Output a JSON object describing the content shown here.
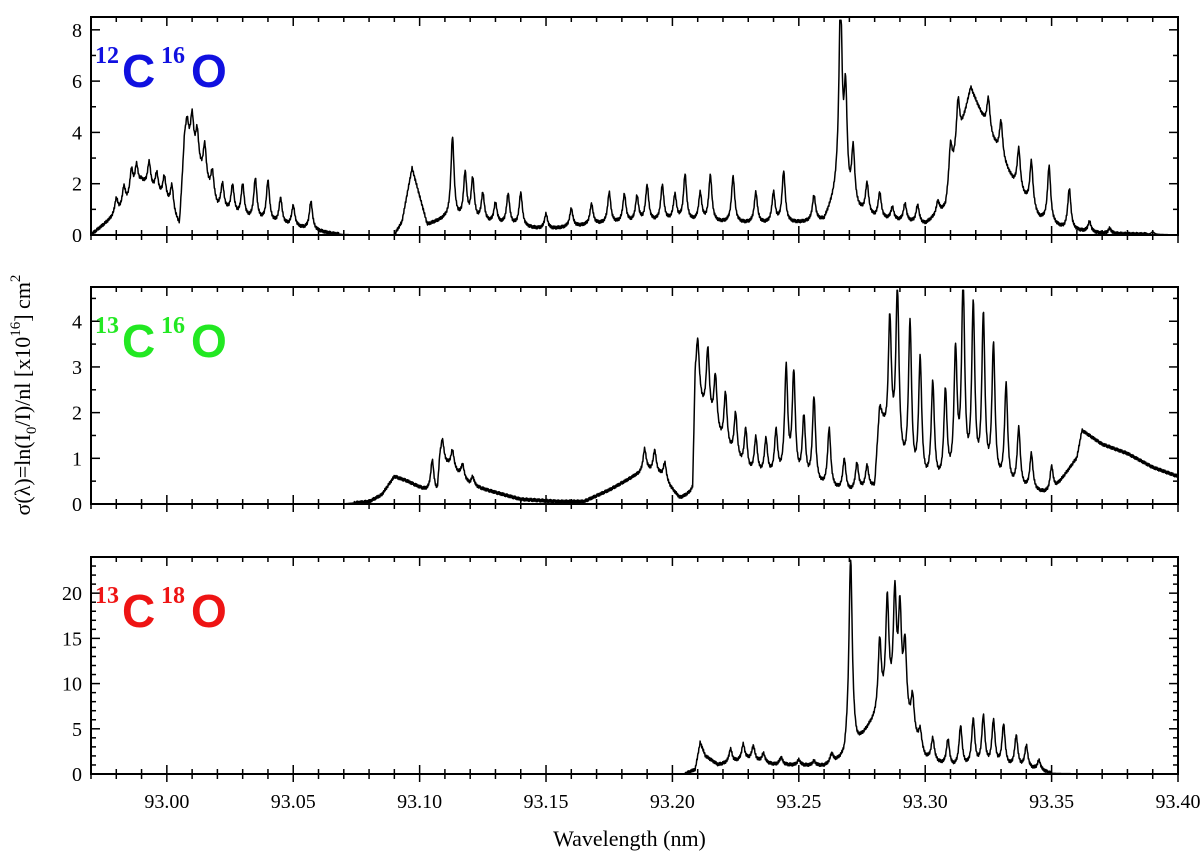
{
  "chart_data": [
    {
      "type": "line",
      "panel": "top",
      "species": {
        "mass_c": "12",
        "element_c": "C",
        "mass_o": "16",
        "element_o": "O",
        "color": "#1010e0"
      },
      "xlim": [
        92.97,
        93.4
      ],
      "ylim": [
        0,
        8.5
      ],
      "yticks": [
        "0",
        "2",
        "4",
        "6",
        "8"
      ],
      "background": [
        [
          92.97,
          0
        ],
        [
          92.983,
          1.0
        ],
        [
          92.99,
          2.0
        ],
        [
          93.0,
          1.2
        ],
        [
          93.005,
          0.3
        ],
        [
          93.007,
          3.5
        ],
        [
          93.01,
          3.0
        ],
        [
          93.015,
          2.0
        ],
        [
          93.02,
          1.0
        ],
        [
          93.03,
          0.6
        ],
        [
          93.05,
          0.3
        ],
        [
          93.065,
          0.05
        ],
        [
          93.07,
          0
        ],
        [
          93.09,
          0
        ],
        [
          93.093,
          0.5
        ],
        [
          93.097,
          2.6
        ],
        [
          93.1,
          1.5
        ],
        [
          93.103,
          0.4
        ],
        [
          93.11,
          0.6
        ],
        [
          93.13,
          0.4
        ],
        [
          93.15,
          0.2
        ],
        [
          93.17,
          0.4
        ],
        [
          93.2,
          0.5
        ],
        [
          93.24,
          0.4
        ],
        [
          93.26,
          0.5
        ],
        [
          93.265,
          1.5
        ],
        [
          93.27,
          1.0
        ],
        [
          93.28,
          0.6
        ],
        [
          93.3,
          0.4
        ],
        [
          93.308,
          1.0
        ],
        [
          93.312,
          3.0
        ],
        [
          93.318,
          5.7
        ],
        [
          93.325,
          4.0
        ],
        [
          93.335,
          2.0
        ],
        [
          93.345,
          0.6
        ],
        [
          93.355,
          0.2
        ],
        [
          93.37,
          0.05
        ],
        [
          93.4,
          0
        ]
      ],
      "peaks": [
        [
          92.98,
          0.6
        ],
        [
          92.983,
          0.8
        ],
        [
          92.986,
          1.0
        ],
        [
          92.988,
          0.9
        ],
        [
          92.993,
          1.0
        ],
        [
          92.996,
          0.8
        ],
        [
          92.999,
          0.9
        ],
        [
          93.002,
          1.0
        ],
        [
          93.008,
          1.0
        ],
        [
          93.01,
          1.5
        ],
        [
          93.012,
          1.3
        ],
        [
          93.015,
          1.4
        ],
        [
          93.018,
          1.0
        ],
        [
          93.022,
          1.0
        ],
        [
          93.026,
          1.1
        ],
        [
          93.03,
          1.3
        ],
        [
          93.035,
          1.6
        ],
        [
          93.04,
          1.6
        ],
        [
          93.045,
          1.0
        ],
        [
          93.05,
          0.8
        ],
        [
          93.057,
          1.1
        ],
        [
          93.113,
          3.2
        ],
        [
          93.118,
          1.8
        ],
        [
          93.121,
          1.6
        ],
        [
          93.125,
          1.1
        ],
        [
          93.13,
          0.8
        ],
        [
          93.135,
          1.2
        ],
        [
          93.14,
          1.3
        ],
        [
          93.15,
          0.6
        ],
        [
          93.16,
          0.7
        ],
        [
          93.168,
          0.8
        ],
        [
          93.175,
          1.2
        ],
        [
          93.181,
          1.1
        ],
        [
          93.186,
          1.0
        ],
        [
          93.19,
          1.4
        ],
        [
          93.196,
          1.4
        ],
        [
          93.201,
          1.0
        ],
        [
          93.205,
          1.8
        ],
        [
          93.211,
          1.1
        ],
        [
          93.215,
          1.8
        ],
        [
          93.224,
          1.8
        ],
        [
          93.233,
          1.2
        ],
        [
          93.24,
          1.2
        ],
        [
          93.244,
          2.0
        ],
        [
          93.256,
          1.0
        ],
        [
          93.2665,
          7.6
        ],
        [
          93.2685,
          4.0
        ],
        [
          93.2715,
          2.2
        ],
        [
          93.277,
          1.2
        ],
        [
          93.282,
          1.0
        ],
        [
          93.287,
          0.5
        ],
        [
          93.292,
          0.7
        ],
        [
          93.297,
          0.7
        ],
        [
          93.305,
          0.5
        ],
        [
          93.31,
          1.5
        ],
        [
          93.313,
          1.8
        ],
        [
          93.325,
          1.3
        ],
        [
          93.33,
          1.4
        ],
        [
          93.337,
          1.6
        ],
        [
          93.342,
          1.8
        ],
        [
          93.349,
          2.2
        ],
        [
          93.357,
          1.6
        ],
        [
          93.365,
          0.4
        ],
        [
          93.373,
          0.2
        ],
        [
          93.39,
          0.1
        ]
      ]
    },
    {
      "type": "line",
      "panel": "middle",
      "species": {
        "mass_c": "13",
        "element_c": "C",
        "mass_o": "16",
        "element_o": "O",
        "color": "#22e822"
      },
      "xlim": [
        92.97,
        93.4
      ],
      "ylim": [
        0,
        4.75
      ],
      "yticks": [
        "0",
        "1",
        "2",
        "3",
        "4"
      ],
      "background": [
        [
          92.97,
          0
        ],
        [
          93.07,
          0
        ],
        [
          93.08,
          0.05
        ],
        [
          93.085,
          0.2
        ],
        [
          93.09,
          0.6
        ],
        [
          93.095,
          0.5
        ],
        [
          93.102,
          0.3
        ],
        [
          93.107,
          0.2
        ],
        [
          93.108,
          0.9
        ],
        [
          93.112,
          0.8
        ],
        [
          93.12,
          0.4
        ],
        [
          93.13,
          0.25
        ],
        [
          93.14,
          0.1
        ],
        [
          93.155,
          0.05
        ],
        [
          93.165,
          0.05
        ],
        [
          93.175,
          0.3
        ],
        [
          93.185,
          0.6
        ],
        [
          93.19,
          0.7
        ],
        [
          93.195,
          0.6
        ],
        [
          93.203,
          0.1
        ],
        [
          93.208,
          0.2
        ],
        [
          93.209,
          2.5
        ],
        [
          93.212,
          2.0
        ],
        [
          93.22,
          1.2
        ],
        [
          93.23,
          0.6
        ],
        [
          93.25,
          0.4
        ],
        [
          93.27,
          0.2
        ],
        [
          93.28,
          0.3
        ],
        [
          93.282,
          2.0
        ],
        [
          93.285,
          1.2
        ],
        [
          93.295,
          0.3
        ],
        [
          93.31,
          0.3
        ],
        [
          93.33,
          0.3
        ],
        [
          93.35,
          0.2
        ],
        [
          93.36,
          1.0
        ],
        [
          93.362,
          1.6
        ],
        [
          93.37,
          1.3
        ],
        [
          93.38,
          1.1
        ],
        [
          93.39,
          0.8
        ],
        [
          93.4,
          0.6
        ]
      ],
      "peaks": [
        [
          93.21,
          1.2
        ],
        [
          93.214,
          1.5
        ],
        [
          93.217,
          1.2
        ],
        [
          93.221,
          1.2
        ],
        [
          93.225,
          1.0
        ],
        [
          93.229,
          0.9
        ],
        [
          93.233,
          0.8
        ],
        [
          93.237,
          0.8
        ],
        [
          93.241,
          1.0
        ],
        [
          93.245,
          2.4
        ],
        [
          93.248,
          2.3
        ],
        [
          93.252,
          1.4
        ],
        [
          93.256,
          1.9
        ],
        [
          93.262,
          1.3
        ],
        [
          93.268,
          0.7
        ],
        [
          93.273,
          0.6
        ],
        [
          93.277,
          0.5
        ],
        [
          93.286,
          2.8
        ],
        [
          93.289,
          3.7
        ],
        [
          93.294,
          3.4
        ],
        [
          93.298,
          2.7
        ],
        [
          93.303,
          2.2
        ],
        [
          93.308,
          2.0
        ],
        [
          93.312,
          2.8
        ],
        [
          93.315,
          4.3
        ],
        [
          93.319,
          3.8
        ],
        [
          93.323,
          3.6
        ],
        [
          93.327,
          3.0
        ],
        [
          93.332,
          2.2
        ],
        [
          93.337,
          1.3
        ],
        [
          93.342,
          0.8
        ],
        [
          93.35,
          0.6
        ],
        [
          93.105,
          0.7
        ],
        [
          93.109,
          0.5
        ],
        [
          93.113,
          0.4
        ],
        [
          93.117,
          0.3
        ],
        [
          93.121,
          0.2
        ],
        [
          93.189,
          0.5
        ],
        [
          93.193,
          0.5
        ],
        [
          93.197,
          0.4
        ]
      ]
    },
    {
      "type": "line",
      "panel": "bottom",
      "species": {
        "mass_c": "13",
        "element_c": "C",
        "mass_o": "18",
        "element_o": "O",
        "color": "#ee1414"
      },
      "xlim": [
        92.97,
        93.4
      ],
      "ylim": [
        0,
        24
      ],
      "yticks": [
        "0",
        "5",
        "10",
        "15",
        "20"
      ],
      "xticks": [
        "93.00",
        "93.05",
        "93.10",
        "93.15",
        "93.20",
        "93.25",
        "93.30",
        "93.35",
        "93.40"
      ],
      "xlabel": "Wavelength (nm)",
      "background": [
        [
          92.97,
          0
        ],
        [
          93.205,
          0
        ],
        [
          93.209,
          0.5
        ],
        [
          93.211,
          3.5
        ],
        [
          93.213,
          2.0
        ],
        [
          93.218,
          1.0
        ],
        [
          93.23,
          1.5
        ],
        [
          93.24,
          1.0
        ],
        [
          93.26,
          0.8
        ],
        [
          93.268,
          1.5
        ],
        [
          93.27,
          4.0
        ],
        [
          93.273,
          3.0
        ],
        [
          93.278,
          5.0
        ],
        [
          93.285,
          7.0
        ],
        [
          93.293,
          5.0
        ],
        [
          93.3,
          1.5
        ],
        [
          93.31,
          0.5
        ],
        [
          93.33,
          0.6
        ],
        [
          93.345,
          0.4
        ],
        [
          93.35,
          0
        ],
        [
          93.4,
          0
        ]
      ],
      "peaks": [
        [
          93.2705,
          20.0
        ],
        [
          93.282,
          8.0
        ],
        [
          93.285,
          11.5
        ],
        [
          93.288,
          12.5
        ],
        [
          93.29,
          11.0
        ],
        [
          93.292,
          8.0
        ],
        [
          93.295,
          4.0
        ],
        [
          93.298,
          2.0
        ],
        [
          93.303,
          2.5
        ],
        [
          93.309,
          3.0
        ],
        [
          93.314,
          4.5
        ],
        [
          93.319,
          5.2
        ],
        [
          93.323,
          5.5
        ],
        [
          93.327,
          5.0
        ],
        [
          93.331,
          4.6
        ],
        [
          93.336,
          3.5
        ],
        [
          93.34,
          2.5
        ],
        [
          93.345,
          1.0
        ],
        [
          93.223,
          1.5
        ],
        [
          93.228,
          1.8
        ],
        [
          93.232,
          1.6
        ],
        [
          93.236,
          1.0
        ],
        [
          93.243,
          0.8
        ],
        [
          93.25,
          0.6
        ],
        [
          93.256,
          0.5
        ],
        [
          93.263,
          1.0
        ]
      ]
    }
  ],
  "shared_ylabel": {
    "main": "σ(λ)=ln(I",
    "sub": "0",
    "mid": "/I)/nl   [x10",
    "sup": "16",
    "end": "]   cm",
    "sup2": "2"
  }
}
